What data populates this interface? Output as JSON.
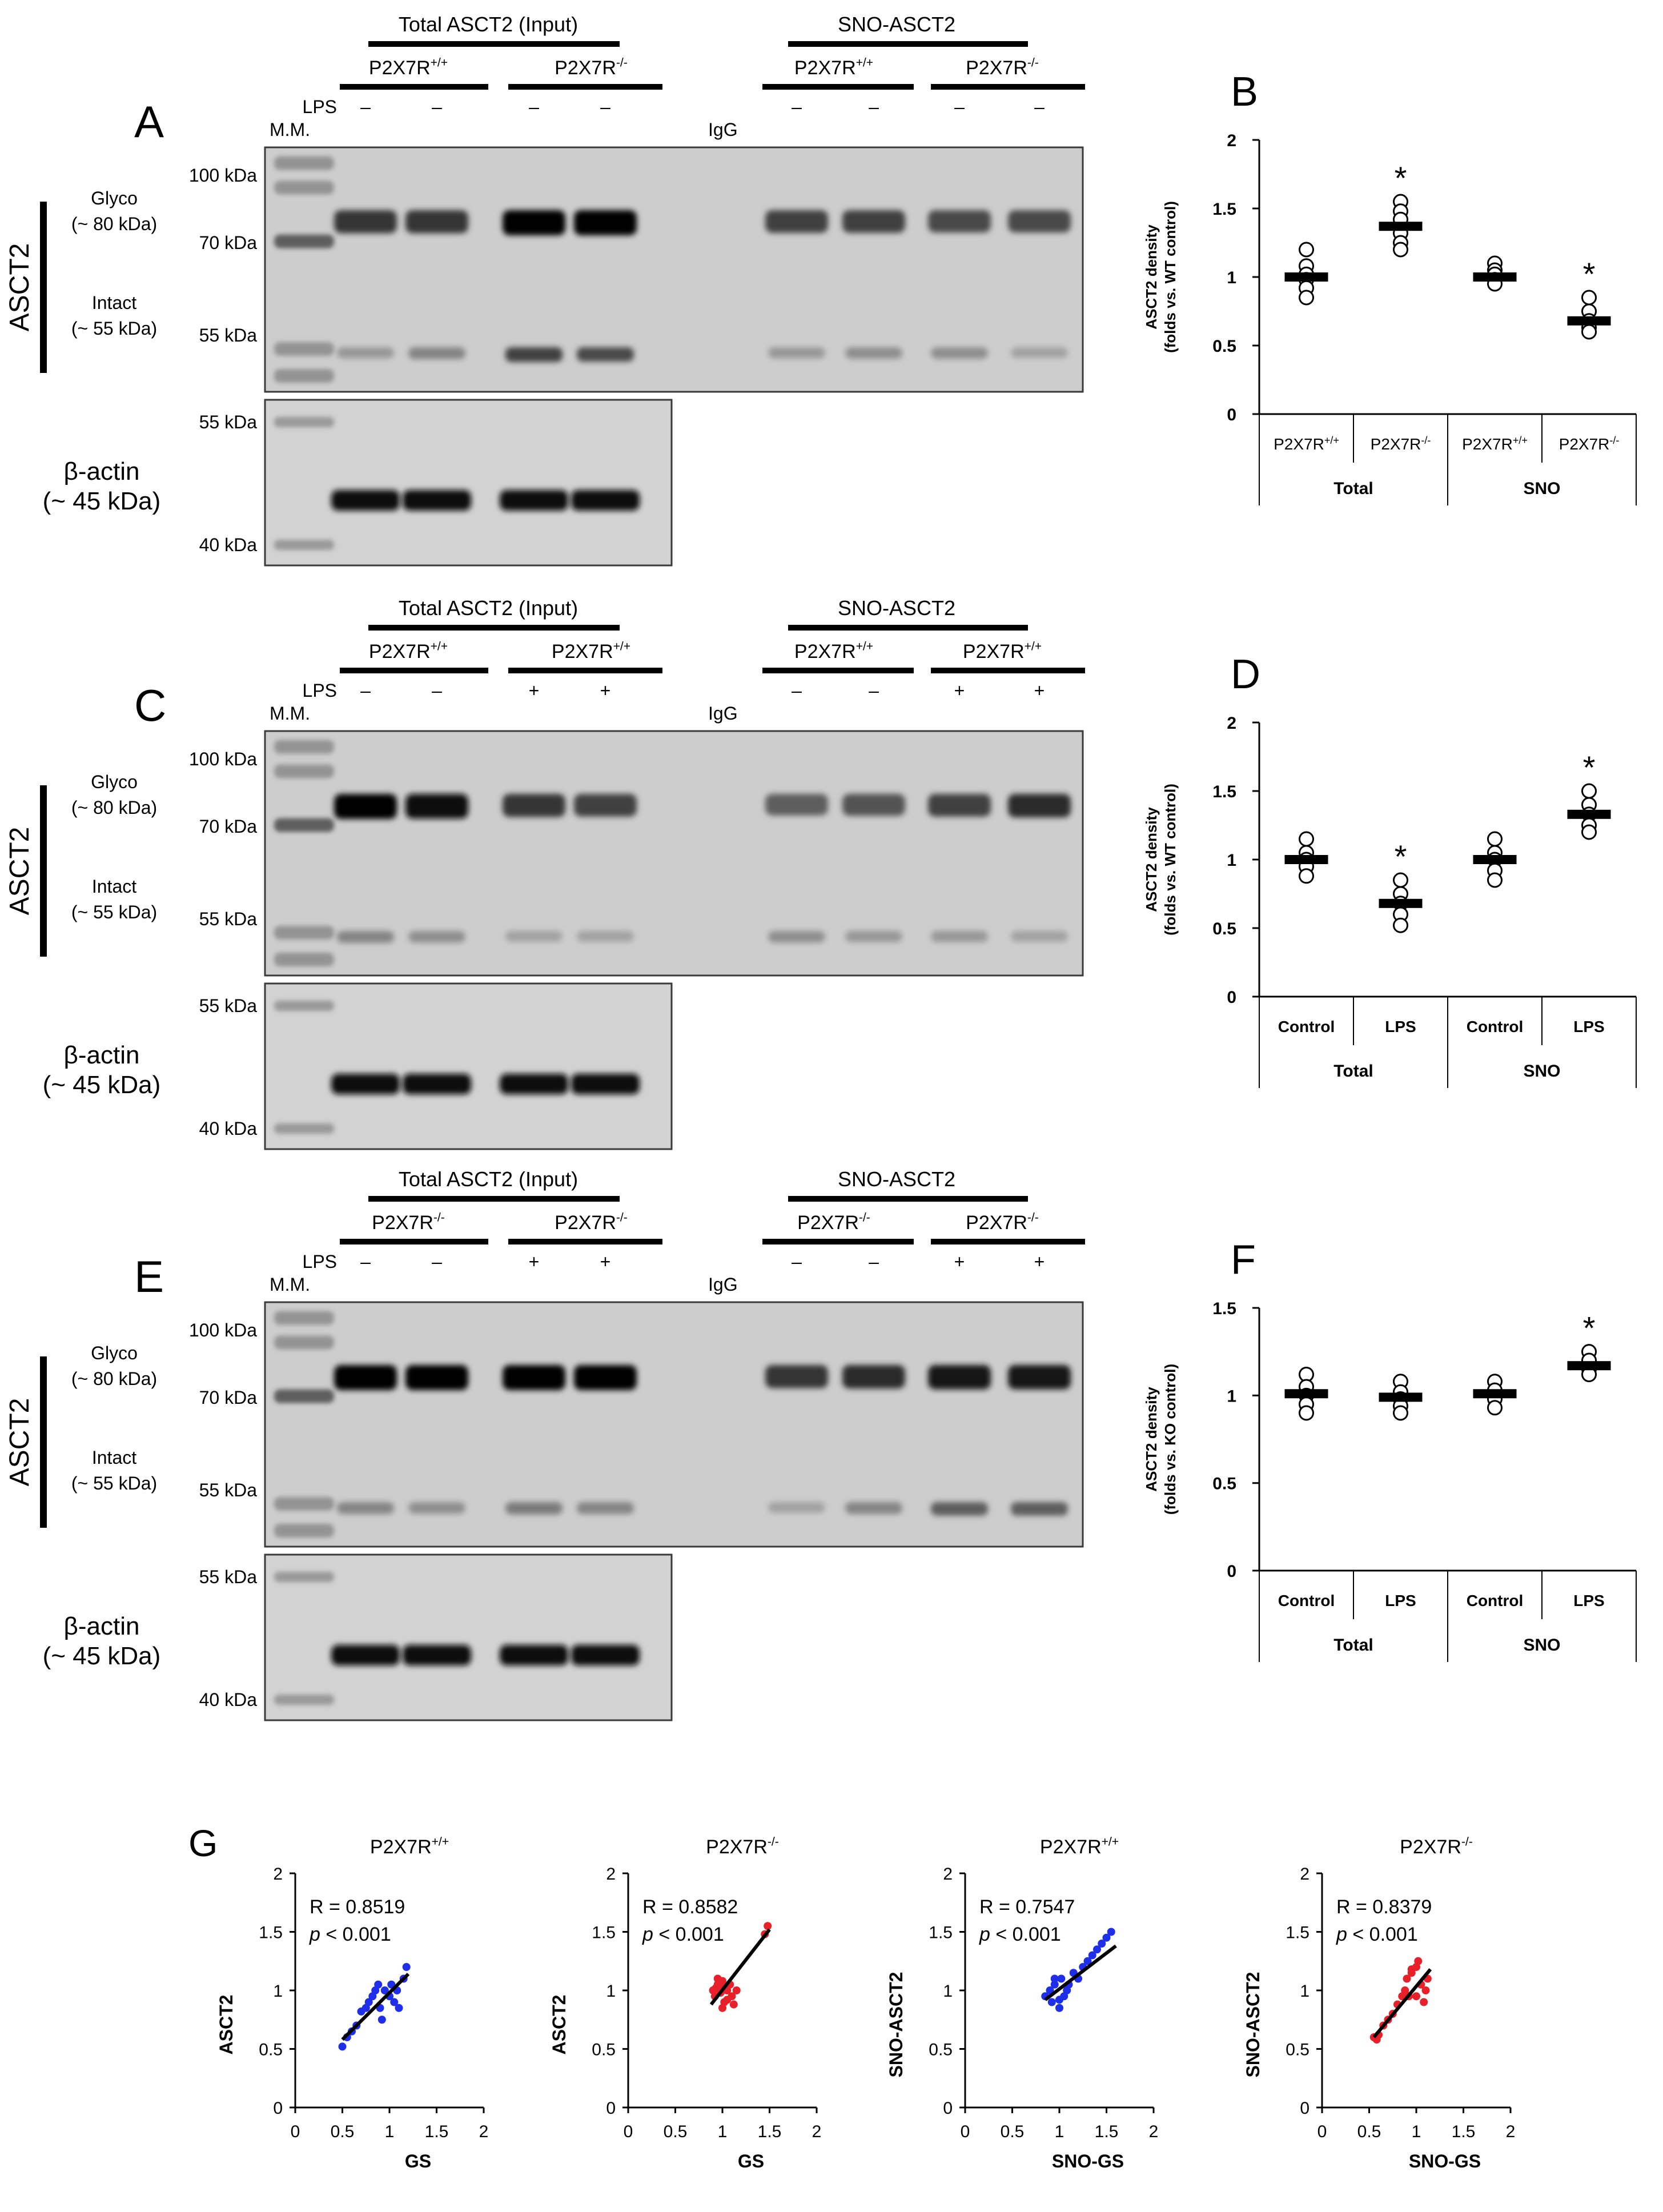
{
  "figure": {
    "blots": [
      {
        "panel": "A",
        "group1_header": "Total ASCT2 (Input)",
        "group2_header": "SNO-ASCT2",
        "genotype_labels": [
          "P2X7R+/+",
          "P2X7R-/-",
          "P2X7R+/+",
          "P2X7R-/-"
        ],
        "lps_label": "LPS",
        "lps_marks": [
          "–",
          "–",
          "–",
          "–",
          "–",
          "–",
          "–",
          "–"
        ],
        "mm_label": "M.M.",
        "igg_label": "IgG",
        "side_label": "ASCT2",
        "glyco_label": "Glyco",
        "glyco_kda": "(~ 80 kDa)",
        "intact_label": "Intact",
        "intact_kda": "(~ 55 kDa)",
        "ladder_top": [
          "100 kDa",
          "70 kDa",
          "55 kDa"
        ],
        "actin_label": "β-actin",
        "actin_kda": "(~ 45 kDa)",
        "ladder_bottom": [
          "55 kDa",
          "40 kDa"
        ],
        "glyco_band_intensity": [
          0.75,
          0.75,
          1.0,
          1.0,
          0.7,
          0.7,
          0.65,
          0.65
        ],
        "intact_band_intensity": [
          0.25,
          0.35,
          0.7,
          0.65,
          0.25,
          0.3,
          0.3,
          0.2
        ]
      },
      {
        "panel": "C",
        "group1_header": "Total ASCT2 (Input)",
        "group2_header": "SNO-ASCT2",
        "genotype_labels": [
          "P2X7R+/+",
          "P2X7R+/+",
          "P2X7R+/+",
          "P2X7R+/+"
        ],
        "lps_label": "LPS",
        "lps_marks": [
          "–",
          "–",
          "+",
          "+",
          "–",
          "–",
          "+",
          "+"
        ],
        "mm_label": "M.M.",
        "igg_label": "IgG",
        "side_label": "ASCT2",
        "glyco_label": "Glyco",
        "glyco_kda": "(~ 80 kDa)",
        "intact_label": "Intact",
        "intact_kda": "(~ 55 kDa)",
        "ladder_top": [
          "100 kDa",
          "70 kDa",
          "55 kDa"
        ],
        "actin_label": "β-actin",
        "actin_kda": "(~ 45 kDa)",
        "ladder_bottom": [
          "55 kDa",
          "40 kDa"
        ],
        "glyco_band_intensity": [
          1.0,
          0.95,
          0.75,
          0.7,
          0.55,
          0.6,
          0.7,
          0.8
        ],
        "intact_band_intensity": [
          0.35,
          0.3,
          0.2,
          0.2,
          0.3,
          0.25,
          0.25,
          0.2
        ]
      },
      {
        "panel": "E",
        "group1_header": "Total ASCT2 (Input)",
        "group2_header": "SNO-ASCT2",
        "genotype_labels": [
          "P2X7R-/-",
          "P2X7R-/-",
          "P2X7R-/-",
          "P2X7R-/-"
        ],
        "lps_label": "LPS",
        "lps_marks": [
          "–",
          "–",
          "+",
          "+",
          "–",
          "–",
          "+",
          "+"
        ],
        "mm_label": "M.M.",
        "igg_label": "IgG",
        "side_label": "ASCT2",
        "glyco_label": "Glyco",
        "glyco_kda": "(~ 80 kDa)",
        "intact_label": "Intact",
        "intact_kda": "(~ 55 kDa)",
        "ladder_top": [
          "100 kDa",
          "70 kDa",
          "55 kDa"
        ],
        "actin_label": "β-actin",
        "actin_kda": "(~ 45 kDa)",
        "ladder_bottom": [
          "55 kDa",
          "40 kDa"
        ],
        "glyco_band_intensity": [
          1.0,
          1.0,
          1.0,
          1.0,
          0.75,
          0.8,
          0.9,
          0.9
        ],
        "intact_band_intensity": [
          0.35,
          0.3,
          0.4,
          0.35,
          0.2,
          0.35,
          0.55,
          0.55
        ]
      }
    ],
    "dotplots": [
      {
        "panel": "B",
        "ylabel_line1": "ASCT2 density",
        "ylabel_line2": "(folds vs. WT control)",
        "ylim": [
          0,
          2
        ],
        "yticks": [
          "0",
          "0.5",
          "1",
          "1.5",
          "2"
        ],
        "categories": [
          "P2X7R+/+",
          "P2X7R-/-",
          "P2X7R+/+",
          "P2X7R-/-"
        ],
        "groups": [
          "Total",
          "SNO"
        ],
        "means": [
          1.0,
          1.37,
          1.0,
          0.68
        ],
        "points": [
          [
            1.2,
            1.08,
            1.02,
            0.98,
            0.92,
            0.85
          ],
          [
            1.55,
            1.48,
            1.42,
            1.32,
            1.25,
            1.2
          ],
          [
            1.1,
            1.05,
            1.02,
            0.98,
            0.95
          ],
          [
            0.85,
            0.75,
            0.68,
            0.63,
            0.6
          ]
        ],
        "significance": [
          "",
          "*",
          "",
          "*"
        ]
      },
      {
        "panel": "D",
        "ylabel_line1": "ASCT2 density",
        "ylabel_line2": "(folds vs. WT control)",
        "ylim": [
          0,
          2
        ],
        "yticks": [
          "0",
          "0.5",
          "1",
          "1.5",
          "2"
        ],
        "categories": [
          "Control",
          "LPS",
          "Control",
          "LPS"
        ],
        "groups": [
          "Total",
          "SNO"
        ],
        "means": [
          1.0,
          0.68,
          1.0,
          1.33
        ],
        "points": [
          [
            1.15,
            1.05,
            1.0,
            0.95,
            0.88
          ],
          [
            0.85,
            0.75,
            0.68,
            0.6,
            0.52
          ],
          [
            1.15,
            1.05,
            1.0,
            0.92,
            0.85
          ],
          [
            1.5,
            1.4,
            1.33,
            1.25,
            1.2
          ]
        ],
        "significance": [
          "",
          "*",
          "",
          "*"
        ]
      },
      {
        "panel": "F",
        "ylabel_line1": "ASCT2 density",
        "ylabel_line2": "(folds vs. KO control)",
        "ylim": [
          0,
          1.5
        ],
        "yticks": [
          "0",
          "0.5",
          "1",
          "1.5"
        ],
        "categories": [
          "Control",
          "LPS",
          "Control",
          "LPS"
        ],
        "groups": [
          "Total",
          "SNO"
        ],
        "means": [
          1.01,
          0.99,
          1.01,
          1.17
        ],
        "points": [
          [
            1.12,
            1.05,
            1.0,
            0.95,
            0.9
          ],
          [
            1.08,
            1.02,
            0.98,
            0.94,
            0.9
          ],
          [
            1.08,
            1.03,
            0.98,
            0.93
          ],
          [
            1.25,
            1.2,
            1.15,
            1.12
          ]
        ],
        "significance": [
          "",
          "",
          "",
          "*"
        ]
      }
    ],
    "panel_g_label": "G"
  },
  "chart_data": [
    {
      "panel": "B",
      "type": "scatter",
      "categories": [
        "P2X7R+/+",
        "P2X7R-/-",
        "P2X7R+/+",
        "P2X7R-/-"
      ],
      "groups": [
        "Total",
        "SNO"
      ],
      "ylabel": "ASCT2 density (folds vs. WT control)",
      "ylim": [
        0,
        2
      ],
      "means": [
        1.0,
        1.37,
        1.0,
        0.68
      ],
      "significant": [
        false,
        true,
        false,
        true
      ]
    },
    {
      "panel": "D",
      "type": "scatter",
      "categories": [
        "Control",
        "LPS",
        "Control",
        "LPS"
      ],
      "groups": [
        "Total",
        "SNO"
      ],
      "ylabel": "ASCT2 density (folds vs. WT control)",
      "ylim": [
        0,
        2
      ],
      "means": [
        1.0,
        0.68,
        1.0,
        1.33
      ],
      "significant": [
        false,
        true,
        false,
        true
      ]
    },
    {
      "panel": "F",
      "type": "scatter",
      "categories": [
        "Control",
        "LPS",
        "Control",
        "LPS"
      ],
      "groups": [
        "Total",
        "SNO"
      ],
      "ylabel": "ASCT2 density (folds vs. KO control)",
      "ylim": [
        0,
        1.5
      ],
      "means": [
        1.01,
        0.99,
        1.01,
        1.17
      ],
      "significant": [
        false,
        false,
        false,
        true
      ]
    },
    {
      "type": "scatter",
      "title": "P2X7R+/+",
      "xlabel": "GS",
      "ylabel": "ASCT2",
      "xlim": [
        0,
        2
      ],
      "ylim": [
        0,
        2
      ],
      "color": "#1f2ee8",
      "stat_r": "R = 0.8519",
      "stat_p": "p",
      "stat_p_rest": " < 0.001",
      "fit": [
        [
          0.5,
          0.58
        ],
        [
          1.2,
          1.14
        ]
      ],
      "x": [
        0.5,
        0.55,
        0.6,
        0.65,
        0.7,
        0.75,
        0.78,
        0.82,
        0.85,
        0.88,
        0.9,
        0.95,
        1.0,
        1.02,
        1.05,
        1.08,
        1.1,
        1.15,
        1.18,
        0.92
      ],
      "y": [
        0.52,
        0.6,
        0.65,
        0.7,
        0.82,
        0.85,
        0.9,
        0.95,
        1.0,
        1.05,
        0.85,
        1.0,
        0.95,
        1.05,
        0.9,
        1.0,
        0.85,
        1.1,
        1.2,
        0.75
      ],
      "xticks": [
        "0",
        "0.5",
        "1",
        "1.5",
        "2"
      ],
      "yticks": [
        "0",
        "0.5",
        "1",
        "1.5",
        "2"
      ]
    },
    {
      "type": "scatter",
      "title": "P2X7R-/-",
      "xlabel": "GS",
      "ylabel": "ASCT2",
      "xlim": [
        0,
        2
      ],
      "ylim": [
        0,
        2
      ],
      "color": "#e8202a",
      "stat_r": "R = 0.8582",
      "stat_p": "p",
      "stat_p_rest": " < 0.001",
      "fit": [
        [
          0.88,
          0.88
        ],
        [
          1.5,
          1.52
        ]
      ],
      "x": [
        0.9,
        0.92,
        0.95,
        0.98,
        1.0,
        1.02,
        1.05,
        1.08,
        1.1,
        1.12,
        0.95,
        1.0,
        1.05,
        1.15,
        1.45,
        1.48,
        1.0,
        0.93
      ],
      "y": [
        1.0,
        0.95,
        1.05,
        0.98,
        1.02,
        0.9,
        1.0,
        1.05,
        0.95,
        0.88,
        1.1,
        1.08,
        0.92,
        1.0,
        1.48,
        1.55,
        0.85,
        1.02
      ],
      "xticks": [
        "0",
        "0.5",
        "1",
        "1.5",
        "2"
      ],
      "yticks": [
        "0",
        "0.5",
        "1",
        "1.5",
        "2"
      ]
    },
    {
      "type": "scatter",
      "title": "P2X7R+/+",
      "xlabel": "SNO-GS",
      "ylabel": "SNO-ASCT2",
      "xlim": [
        0,
        2
      ],
      "ylim": [
        0,
        2
      ],
      "color": "#1f2ee8",
      "stat_r": "R = 0.7547",
      "stat_p": "p",
      "stat_p_rest": " < 0.001",
      "fit": [
        [
          0.85,
          0.92
        ],
        [
          1.6,
          1.38
        ]
      ],
      "x": [
        0.85,
        0.9,
        0.92,
        0.95,
        1.0,
        1.02,
        1.05,
        1.08,
        1.1,
        1.15,
        1.2,
        1.25,
        1.3,
        1.35,
        1.4,
        1.45,
        1.5,
        1.55,
        0.95,
        1.0
      ],
      "y": [
        0.95,
        1.0,
        0.9,
        1.05,
        0.85,
        1.1,
        0.95,
        1.0,
        1.05,
        1.15,
        1.1,
        1.2,
        1.25,
        1.3,
        1.35,
        1.4,
        1.45,
        1.5,
        1.1,
        0.92
      ],
      "xticks": [
        "0",
        "0.5",
        "1",
        "1.5",
        "2"
      ],
      "yticks": [
        "0",
        "0.5",
        "1",
        "1.5",
        "2"
      ]
    },
    {
      "type": "scatter",
      "title": "P2X7R-/-",
      "xlabel": "SNO-GS",
      "ylabel": "SNO-ASCT2",
      "xlim": [
        0,
        2
      ],
      "ylim": [
        0,
        2
      ],
      "color": "#e8202a",
      "stat_r": "R = 0.8379",
      "stat_p": "p",
      "stat_p_rest": " < 0.001",
      "fit": [
        [
          0.55,
          0.6
        ],
        [
          1.15,
          1.18
        ]
      ],
      "x": [
        0.55,
        0.58,
        0.6,
        0.65,
        0.7,
        0.75,
        0.8,
        0.85,
        0.88,
        0.9,
        0.92,
        0.95,
        1.0,
        1.02,
        1.05,
        1.08,
        1.1,
        1.12,
        0.95,
        1.0
      ],
      "y": [
        0.6,
        0.58,
        0.62,
        0.7,
        0.75,
        0.8,
        0.88,
        0.95,
        1.0,
        1.1,
        0.95,
        1.15,
        1.2,
        1.25,
        1.05,
        0.9,
        1.0,
        1.1,
        1.18,
        0.95
      ],
      "xticks": [
        "0",
        "0.5",
        "1",
        "1.5",
        "2"
      ],
      "yticks": [
        "0",
        "0.5",
        "1",
        "1.5",
        "2"
      ]
    }
  ]
}
